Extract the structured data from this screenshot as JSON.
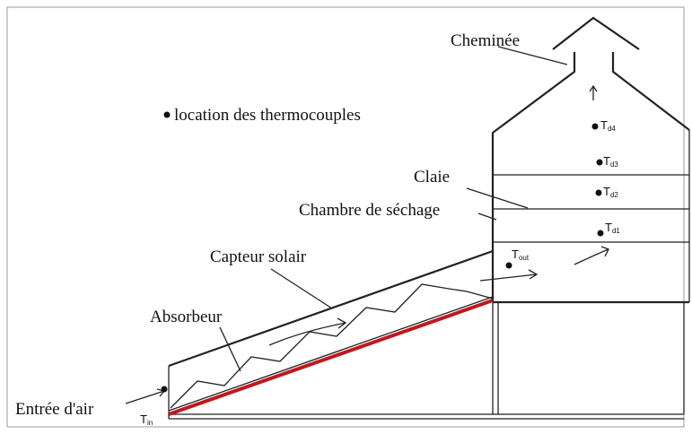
{
  "labels": {
    "chimney": "Cheminée",
    "legend": "location des thermocouples",
    "tray": "Claie",
    "chamber": "Chambre de séchage",
    "collector": "Capteur solair",
    "absorber": "Absorbeur",
    "inlet": "Entrée d'air"
  },
  "sensors": [
    {
      "base": "T",
      "sub": "in"
    },
    {
      "base": "T",
      "sub": "out"
    },
    {
      "base": "T",
      "sub": "d1"
    },
    {
      "base": "T",
      "sub": "d2"
    },
    {
      "base": "T",
      "sub": "d3"
    },
    {
      "base": "T",
      "sub": "d4"
    }
  ]
}
